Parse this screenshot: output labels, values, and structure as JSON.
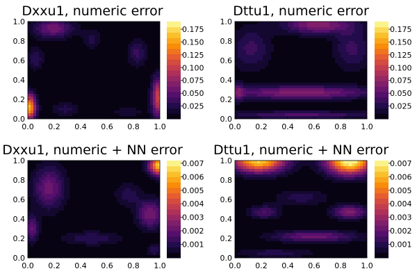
{
  "chart_data": [
    {
      "type": "heatmap",
      "title": "Dxxu1, numeric error",
      "xlabel": "",
      "ylabel": "",
      "xlim": [
        0,
        1
      ],
      "ylim": [
        0,
        1
      ],
      "xticks": [
        "0.0",
        "0.2",
        "0.4",
        "0.6",
        "0.8",
        "1.0"
      ],
      "yticks": [
        "0.0",
        "0.2",
        "0.4",
        "0.6",
        "0.8",
        "1.0"
      ],
      "colorbar": {
        "min": 0,
        "max": 0.19,
        "ticks": [
          "0.025",
          "0.050",
          "0.075",
          "0.100",
          "0.125",
          "0.150",
          "0.175"
        ]
      },
      "colormap": "inferno",
      "blobs": [
        {
          "x": 0.19,
          "y": 0.93,
          "rx": 0.15,
          "ry": 0.1,
          "v": 0.06
        },
        {
          "x": 0.06,
          "y": 0.62,
          "rx": 0.06,
          "ry": 0.12,
          "v": 0.03
        },
        {
          "x": 0.48,
          "y": 0.82,
          "rx": 0.07,
          "ry": 0.1,
          "v": 0.025
        },
        {
          "x": 0.82,
          "y": 0.68,
          "rx": 0.07,
          "ry": 0.14,
          "v": 0.035
        },
        {
          "x": 0.01,
          "y": 0.12,
          "rx": 0.05,
          "ry": 0.13,
          "v": 0.16
        },
        {
          "x": 0.98,
          "y": 0.22,
          "rx": 0.05,
          "ry": 0.2,
          "v": 0.11
        },
        {
          "x": 0.28,
          "y": 0.1,
          "rx": 0.11,
          "ry": 0.07,
          "v": 0.025
        },
        {
          "x": 0.75,
          "y": 0.07,
          "rx": 0.12,
          "ry": 0.05,
          "v": 0.02
        }
      ]
    },
    {
      "type": "heatmap",
      "title": "Dttu1, numeric error",
      "xlabel": "",
      "ylabel": "",
      "xlim": [
        0,
        1
      ],
      "ylim": [
        0,
        1
      ],
      "xticks": [
        "0.0",
        "0.2",
        "0.4",
        "0.6",
        "0.8",
        "1.0"
      ],
      "yticks": [
        "0.0",
        "0.2",
        "0.4",
        "0.6",
        "0.8",
        "1.0"
      ],
      "colorbar": {
        "min": 0,
        "max": 0.19,
        "ticks": [
          "0.025",
          "0.050",
          "0.075",
          "0.100",
          "0.125",
          "0.150",
          "0.175"
        ]
      },
      "colormap": "inferno",
      "blobs": [
        {
          "x": 0.62,
          "y": 0.97,
          "rx": 0.26,
          "ry": 0.1,
          "v": 0.07
        },
        {
          "x": 0.12,
          "y": 0.72,
          "rx": 0.15,
          "ry": 0.22,
          "v": 0.035
        },
        {
          "x": 0.88,
          "y": 0.72,
          "rx": 0.14,
          "ry": 0.22,
          "v": 0.035
        },
        {
          "x": 0.5,
          "y": 0.27,
          "rx": 0.55,
          "ry": 0.07,
          "v": 0.07
        },
        {
          "x": 0.5,
          "y": 0.04,
          "rx": 0.55,
          "ry": 0.04,
          "v": 0.045
        },
        {
          "x": 0.02,
          "y": 0.27,
          "rx": 0.05,
          "ry": 0.1,
          "v": 0.04
        }
      ]
    },
    {
      "type": "heatmap",
      "title": "Dxxu1, numeric + NN error",
      "xlabel": "",
      "ylabel": "",
      "xlim": [
        0,
        1
      ],
      "ylim": [
        0,
        1
      ],
      "xticks": [
        "0.0",
        "0.2",
        "0.4",
        "0.6",
        "0.8",
        "1.0"
      ],
      "yticks": [
        "0.0",
        "0.2",
        "0.4",
        "0.6",
        "0.8",
        "1.0"
      ],
      "colorbar": {
        "min": 0,
        "max": 0.0072,
        "ticks": [
          "0.001",
          "0.002",
          "0.003",
          "0.004",
          "0.005",
          "0.006",
          "0.007"
        ]
      },
      "colormap": "inferno",
      "blobs": [
        {
          "x": 0.99,
          "y": 0.95,
          "rx": 0.08,
          "ry": 0.1,
          "v": 0.0065
        },
        {
          "x": 0.16,
          "y": 0.72,
          "rx": 0.12,
          "ry": 0.22,
          "v": 0.0022
        },
        {
          "x": 0.03,
          "y": 0.3,
          "rx": 0.05,
          "ry": 0.14,
          "v": 0.002
        },
        {
          "x": 0.92,
          "y": 0.45,
          "rx": 0.1,
          "ry": 0.15,
          "v": 0.0024
        },
        {
          "x": 0.48,
          "y": 0.2,
          "rx": 0.22,
          "ry": 0.07,
          "v": 0.0012
        },
        {
          "x": 0.75,
          "y": 0.65,
          "rx": 0.1,
          "ry": 0.12,
          "v": 0.001
        },
        {
          "x": 0.95,
          "y": 0.08,
          "rx": 0.06,
          "ry": 0.06,
          "v": 0.0012
        }
      ]
    },
    {
      "type": "heatmap",
      "title": "Dttu1, numeric + NN error",
      "xlabel": "",
      "ylabel": "",
      "xlim": [
        0,
        1
      ],
      "ylim": [
        0,
        1
      ],
      "xticks": [
        "0.0",
        "0.2",
        "0.4",
        "0.6",
        "0.8",
        "1.0"
      ],
      "yticks": [
        "0.0",
        "0.2",
        "0.4",
        "0.6",
        "0.8",
        "1.0"
      ],
      "colorbar": {
        "min": 0,
        "max": 0.0072,
        "ticks": [
          "0.001",
          "0.002",
          "0.003",
          "0.004",
          "0.005",
          "0.006",
          "0.007"
        ]
      },
      "colormap": "inferno",
      "blobs": [
        {
          "x": 0.18,
          "y": 1.0,
          "rx": 0.2,
          "ry": 0.12,
          "v": 0.0065
        },
        {
          "x": 0.86,
          "y": 1.0,
          "rx": 0.17,
          "ry": 0.14,
          "v": 0.0075
        },
        {
          "x": 0.86,
          "y": 0.47,
          "rx": 0.13,
          "ry": 0.07,
          "v": 0.0026
        },
        {
          "x": 0.22,
          "y": 0.47,
          "rx": 0.12,
          "ry": 0.07,
          "v": 0.0016
        },
        {
          "x": 0.5,
          "y": 0.62,
          "rx": 0.2,
          "ry": 0.08,
          "v": 0.001
        },
        {
          "x": 0.6,
          "y": 0.22,
          "rx": 0.32,
          "ry": 0.06,
          "v": 0.0022
        },
        {
          "x": 0.3,
          "y": 0.05,
          "rx": 0.3,
          "ry": 0.05,
          "v": 0.001
        }
      ]
    }
  ]
}
